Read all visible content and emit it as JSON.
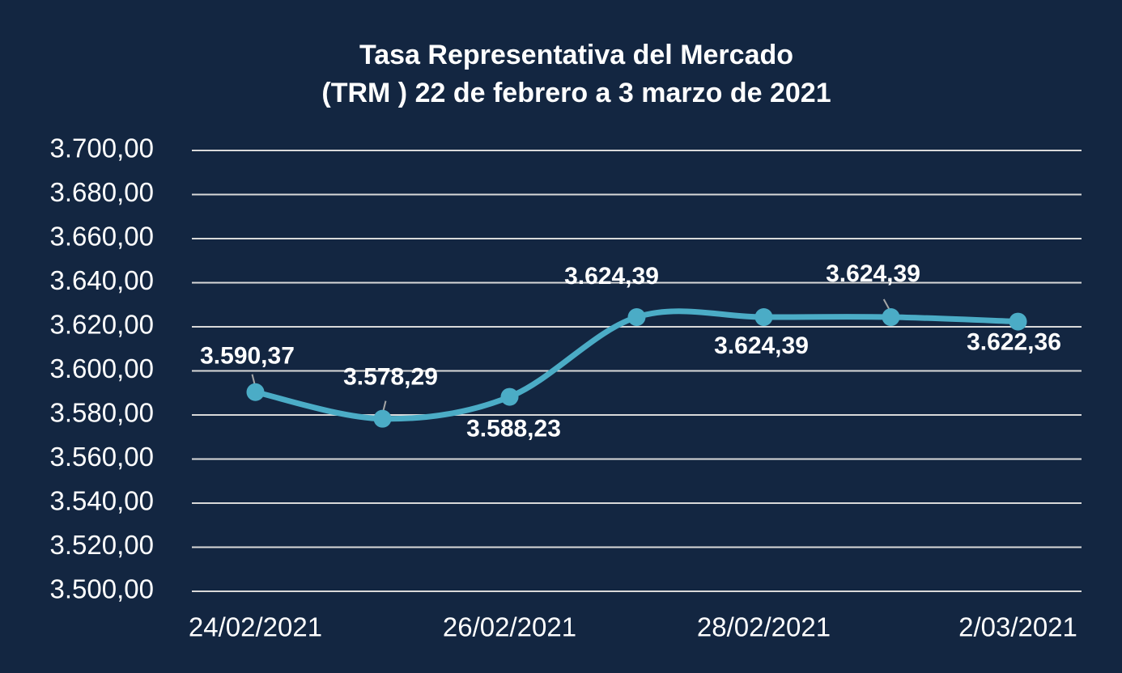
{
  "chart_data": {
    "type": "line",
    "title": [
      "Tasa Representativa del Mercado",
      "(TRM )  22 de febrero a 3 marzo de 2021"
    ],
    "categories": [
      "24/02/2021",
      null,
      "26/02/2021",
      null,
      "28/02/2021",
      null,
      "2/03/2021"
    ],
    "series": [
      {
        "name": "TRM",
        "color": "#4bacc6",
        "values": [
          3590.37,
          3578.29,
          3588.23,
          3624.39,
          3624.39,
          3624.39,
          3622.36
        ],
        "value_labels": [
          "3.590,37",
          "3.578,29",
          "3.588,23",
          "3.624,39",
          "3.624,39",
          "3.624,39",
          "3.622,36"
        ]
      }
    ],
    "ylim": [
      3500,
      3700
    ],
    "yticks": [
      {
        "value": 3500,
        "label": "3.500,00"
      },
      {
        "value": 3520,
        "label": "3.520,00"
      },
      {
        "value": 3540,
        "label": "3.540,00"
      },
      {
        "value": 3560,
        "label": "3.560,00"
      },
      {
        "value": 3580,
        "label": "3.580,00"
      },
      {
        "value": 3600,
        "label": "3.600,00"
      },
      {
        "value": 3620,
        "label": "3.620,00"
      },
      {
        "value": 3640,
        "label": "3.640,00"
      },
      {
        "value": 3660,
        "label": "3.660,00"
      },
      {
        "value": 3680,
        "label": "3.680,00"
      },
      {
        "value": 3700,
        "label": "3.700,00"
      }
    ],
    "grid": true
  }
}
